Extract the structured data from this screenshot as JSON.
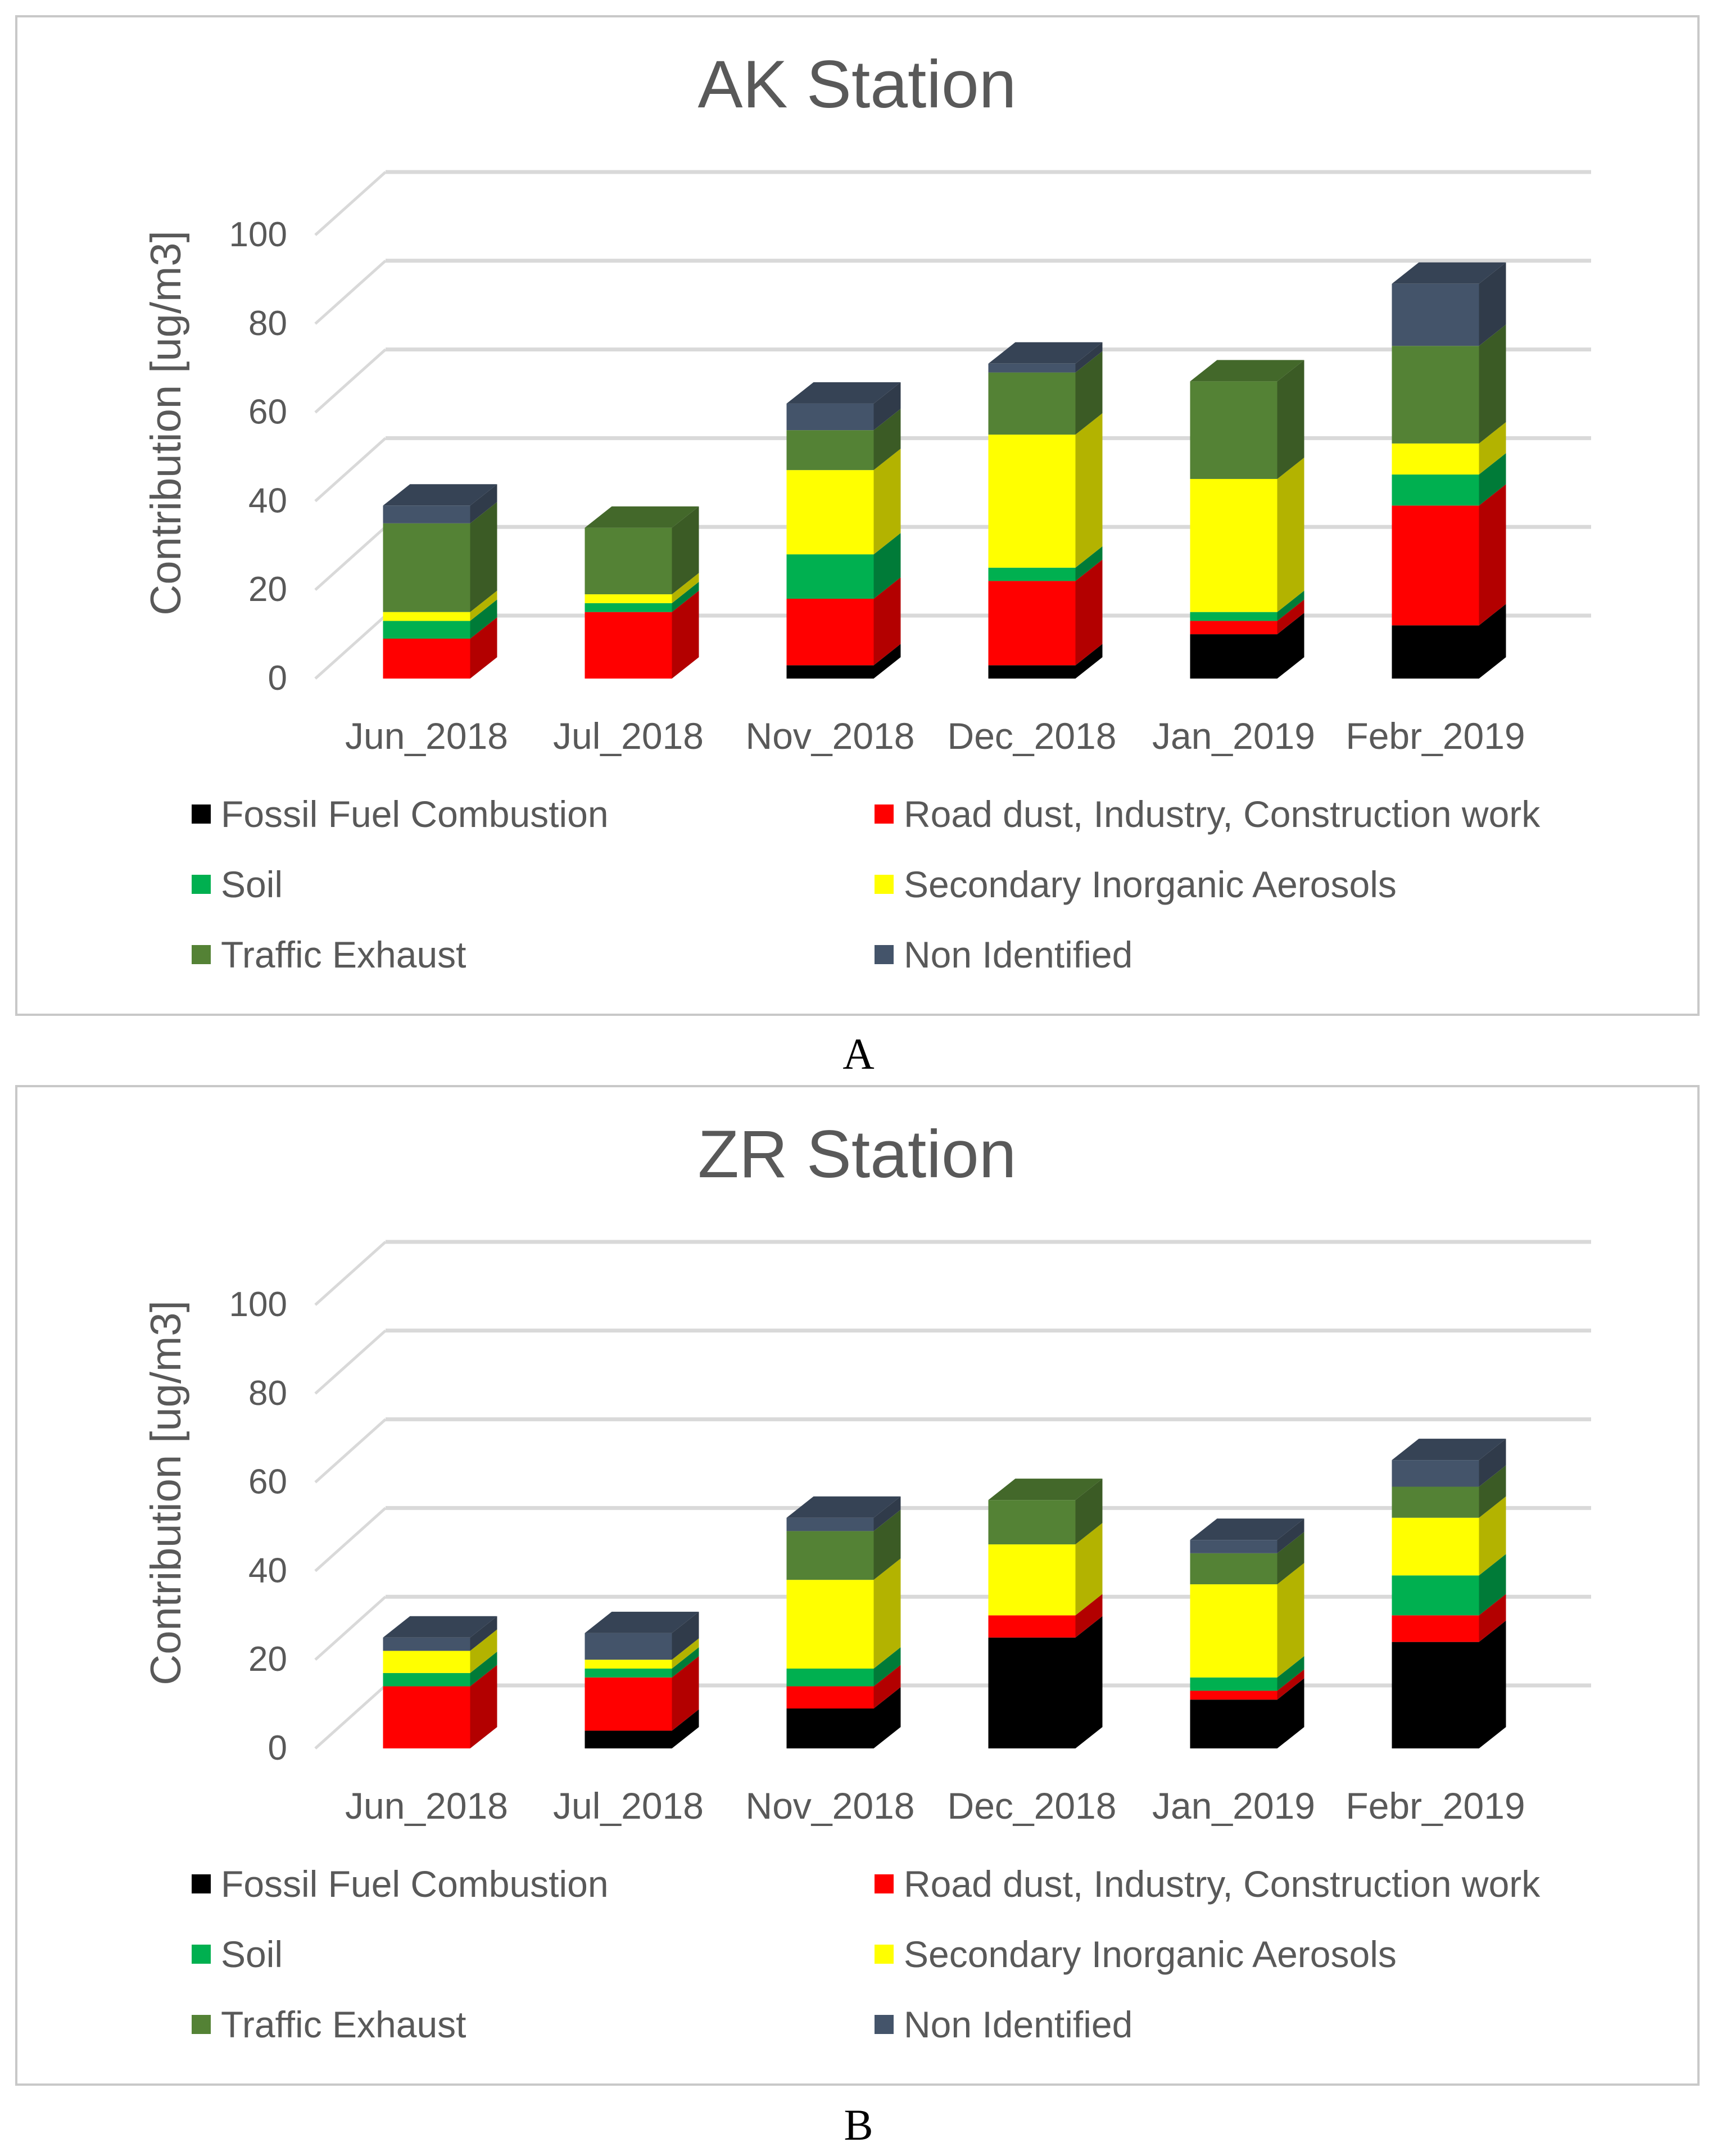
{
  "legend": [
    {
      "name": "Fossil Fuel Combustion",
      "color": "#000000"
    },
    {
      "name": "Road dust, Industry, Construction work",
      "color": "#ff0000"
    },
    {
      "name": "Soil",
      "color": "#00b050"
    },
    {
      "name": "Secondary Inorganic Aerosols",
      "color": "#ffff00"
    },
    {
      "name": "Traffic Exhaust",
      "color": "#548235"
    },
    {
      "name": "Non Identified",
      "color": "#44546a"
    }
  ],
  "chart_data": [
    {
      "type": "bar",
      "stacked": true,
      "style": "3d-column",
      "panel_label": "A",
      "title": "AK Station",
      "ylabel": "Contribution  [ug/m3]",
      "ylim": [
        0,
        100
      ],
      "yticks": [
        0,
        20,
        40,
        60,
        80,
        100
      ],
      "grid": true,
      "legend_position": "bottom",
      "categories": [
        "Jun_2018",
        "Jul_2018",
        "Nov_2018",
        "Dec_2018",
        "Jan_2019",
        "Febr_2019"
      ],
      "series": [
        {
          "name": "Fossil Fuel Combustion",
          "values": [
            0,
            0,
            3,
            3,
            10,
            12
          ]
        },
        {
          "name": "Road dust, Industry, Construction work",
          "values": [
            9,
            15,
            15,
            19,
            3,
            27
          ]
        },
        {
          "name": "Soil",
          "values": [
            4,
            2,
            10,
            3,
            2,
            7
          ]
        },
        {
          "name": "Secondary Inorganic Aerosols",
          "values": [
            2,
            2,
            19,
            30,
            30,
            7
          ]
        },
        {
          "name": "Traffic Exhaust",
          "values": [
            20,
            15,
            9,
            14,
            22,
            22
          ]
        },
        {
          "name": "Non Identified",
          "values": [
            4,
            0,
            6,
            2,
            0,
            14
          ]
        }
      ]
    },
    {
      "type": "bar",
      "stacked": true,
      "style": "3d-column",
      "panel_label": "B",
      "title": "ZR Station",
      "ylabel": "Contribution  [ug/m3]",
      "ylim": [
        0,
        100
      ],
      "yticks": [
        0,
        20,
        40,
        60,
        80,
        100
      ],
      "grid": true,
      "legend_position": "bottom",
      "categories": [
        "Jun_2018",
        "Jul_2018",
        "Nov_2018",
        "Dec_2018",
        "Jan_2019",
        "Febr_2019"
      ],
      "series": [
        {
          "name": "Fossil Fuel Combustion",
          "values": [
            0,
            4,
            9,
            25,
            11,
            24
          ]
        },
        {
          "name": "Road dust, Industry, Construction work",
          "values": [
            14,
            12,
            5,
            5,
            2,
            6
          ]
        },
        {
          "name": "Soil",
          "values": [
            3,
            2,
            4,
            0,
            3,
            9
          ]
        },
        {
          "name": "Secondary Inorganic Aerosols",
          "values": [
            5,
            2,
            20,
            16,
            21,
            13
          ]
        },
        {
          "name": "Traffic Exhaust",
          "values": [
            0,
            0,
            11,
            10,
            7,
            7
          ]
        },
        {
          "name": "Non Identified",
          "values": [
            3,
            6,
            3,
            0,
            3,
            6
          ]
        }
      ]
    }
  ]
}
